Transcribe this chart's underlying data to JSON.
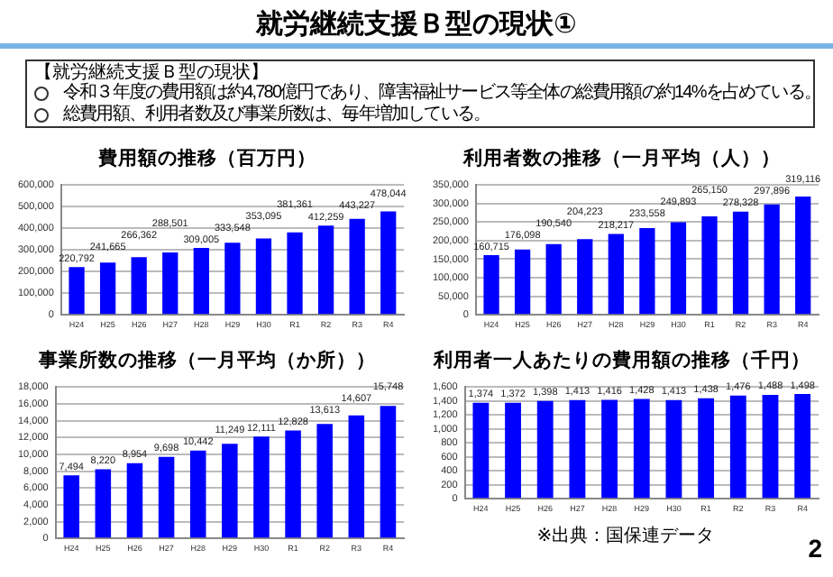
{
  "chart_data": [
    {
      "type": "other",
      "title": "就労継続支援Ｂ型の現状①",
      "subtitle": "【就労継続支援Ｂ型の現状】",
      "annotations": [
        "令和３年度の費用額は約4,780億円であり、障害福祉サービス等全体の総費用額の約14%を占めている。",
        "総費用額、利用者数及び事業所数は、毎年増加している。",
        "2"
      ]
    },
    {
      "type": "bar",
      "title": "費用額の推移（百万円）",
      "categories": [
        "H24",
        "H25",
        "H26",
        "H27",
        "H28",
        "H29",
        "H30",
        "R1",
        "R2",
        "R3",
        "R4"
      ],
      "values": [
        220792,
        241665,
        266362,
        288501,
        309005,
        333548,
        353095,
        381361,
        412259,
        443227,
        478044
      ],
      "color": "#0000ff",
      "ylim": [
        0,
        600000
      ],
      "yticks": [
        {
          "value": 0,
          "label": "0"
        },
        {
          "value": 100000,
          "label": "100,000"
        },
        {
          "value": 200000,
          "label": "200,000"
        },
        {
          "value": 300000,
          "label": "300,000"
        },
        {
          "value": 400000,
          "label": "400,000"
        },
        {
          "value": 500000,
          "label": "500,000"
        },
        {
          "value": 600000,
          "label": "600,000"
        }
      ],
      "grid": "y",
      "value_labels": [
        "220,792",
        "241,665",
        "266,362",
        "288,501",
        "309,005",
        "333,548",
        "353,095",
        "381,361",
        "412,259",
        "443,227",
        "478,044"
      ]
    },
    {
      "type": "bar",
      "title": "利用者数の推移（一月平均（人））",
      "categories": [
        "H24",
        "H25",
        "H26",
        "H27",
        "H28",
        "H29",
        "H30",
        "R1",
        "R2",
        "R3",
        "R4"
      ],
      "values": [
        160715,
        176098,
        190540,
        204223,
        218217,
        233558,
        249893,
        265150,
        278328,
        297896,
        319116
      ],
      "color": "#0000ff",
      "ylim": [
        0,
        350000
      ],
      "yticks": [
        {
          "value": 0,
          "label": "0"
        },
        {
          "value": 50000,
          "label": "50,000"
        },
        {
          "value": 100000,
          "label": "100,000"
        },
        {
          "value": 150000,
          "label": "150,000"
        },
        {
          "value": 200000,
          "label": "200,000"
        },
        {
          "value": 250000,
          "label": "250,000"
        },
        {
          "value": 300000,
          "label": "300,000"
        },
        {
          "value": 350000,
          "label": "350,000"
        }
      ],
      "grid": "y",
      "value_labels": [
        "160,715",
        "176,098",
        "190,540",
        "204,223",
        "218,217",
        "233,558",
        "249,893",
        "265,150",
        "278,328",
        "297,896",
        "319,116"
      ]
    },
    {
      "type": "bar",
      "title": "事業所数の推移（一月平均（か所））",
      "categories": [
        "H24",
        "H25",
        "H26",
        "H27",
        "H28",
        "H29",
        "H30",
        "R1",
        "R2",
        "R3",
        "R4"
      ],
      "values": [
        7494,
        8220,
        8954,
        9698,
        10442,
        11249,
        12111,
        12828,
        13613,
        14607,
        15748
      ],
      "color": "#0000ff",
      "ylim": [
        0,
        18000
      ],
      "yticks": [
        {
          "value": 0,
          "label": "0"
        },
        {
          "value": 2000,
          "label": "2,000"
        },
        {
          "value": 4000,
          "label": "4,000"
        },
        {
          "value": 6000,
          "label": "6,000"
        },
        {
          "value": 8000,
          "label": "8,000"
        },
        {
          "value": 10000,
          "label": "10,000"
        },
        {
          "value": 12000,
          "label": "12,000"
        },
        {
          "value": 14000,
          "label": "14,000"
        },
        {
          "value": 16000,
          "label": "16,000"
        },
        {
          "value": 18000,
          "label": "18,000"
        }
      ],
      "grid": "y",
      "value_labels": [
        "7,494",
        "8,220",
        "8,954",
        "9,698",
        "10,442",
        "11,249",
        "12,111",
        "12,828",
        "13,613",
        "14,607",
        "15,748"
      ]
    },
    {
      "type": "bar",
      "title": "利用者一人あたりの費用額の推移（千円）",
      "categories": [
        "H24",
        "H25",
        "H26",
        "H27",
        "H28",
        "H29",
        "H30",
        "R1",
        "R2",
        "R3",
        "R4"
      ],
      "values": [
        1374,
        1372,
        1398,
        1413,
        1416,
        1428,
        1413,
        1438,
        1476,
        1488,
        1498
      ],
      "color": "#0000ff",
      "ylim": [
        0,
        1600
      ],
      "yticks": [
        {
          "value": 0,
          "label": "0"
        },
        {
          "value": 200,
          "label": "200"
        },
        {
          "value": 400,
          "label": "400"
        },
        {
          "value": 600,
          "label": "600"
        },
        {
          "value": 800,
          "label": "800"
        },
        {
          "value": 1000,
          "label": "1,000"
        },
        {
          "value": 1200,
          "label": "1,200"
        },
        {
          "value": 1400,
          "label": "1,400"
        },
        {
          "value": 1600,
          "label": "1,600"
        }
      ],
      "grid": "y",
      "value_labels": [
        "1,374",
        "1,372",
        "1,398",
        "1,413",
        "1,416",
        "1,428",
        "1,413",
        "1,438",
        "1,476",
        "1,488",
        "1,498"
      ],
      "annotations": [
        "※出典：国保連データ"
      ]
    }
  ]
}
